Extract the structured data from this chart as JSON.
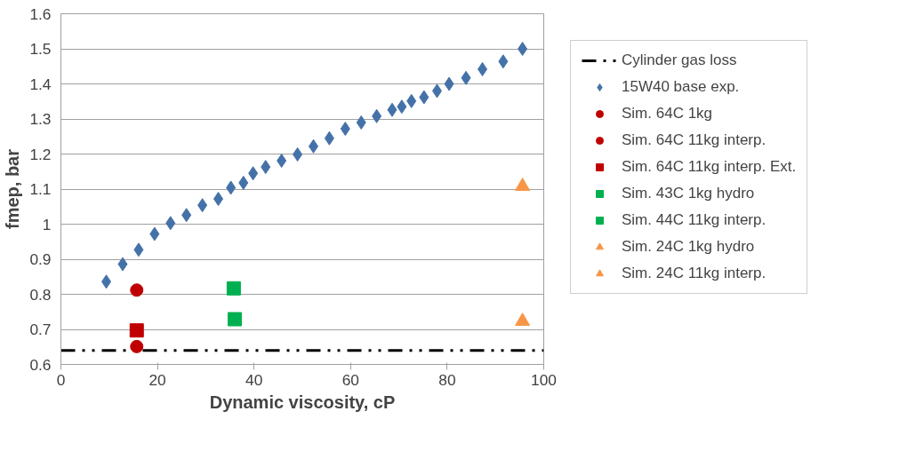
{
  "chart_data": {
    "type": "scatter",
    "xlabel": "Dynamic viscosity, cP",
    "ylabel": "fmep, bar",
    "xlim": [
      0,
      100
    ],
    "ylim": [
      0.6,
      1.6
    ],
    "xticks": [
      0,
      20,
      40,
      60,
      80,
      100
    ],
    "yticks": [
      0.6,
      0.7,
      0.8,
      0.9,
      1,
      1.1,
      1.2,
      1.3,
      1.4,
      1.5,
      1.6
    ],
    "grid": "y",
    "legend": "right",
    "series": [
      {
        "name": "Cylinder gas loss",
        "type": "line",
        "line_style": "dashed",
        "marker": "none",
        "color": "#000000",
        "x": [
          0,
          100
        ],
        "values": [
          0.64,
          0.64
        ]
      },
      {
        "name": "15W40 base exp.",
        "marker": "diamond",
        "color": "#4472a8",
        "x": [
          9.4,
          12.8,
          16.1,
          19.4,
          22.7,
          26.0,
          29.3,
          32.6,
          35.2,
          37.8,
          39.8,
          42.4,
          45.7,
          49.0,
          52.3,
          55.6,
          58.9,
          62.2,
          65.4,
          68.6,
          70.6,
          72.6,
          75.2,
          77.9,
          80.4,
          83.9,
          87.3,
          91.6,
          95.6
        ],
        "values": [
          0.836,
          0.886,
          0.927,
          0.972,
          1.003,
          1.026,
          1.054,
          1.072,
          1.104,
          1.118,
          1.145,
          1.163,
          1.181,
          1.199,
          1.222,
          1.245,
          1.272,
          1.29,
          1.308,
          1.326,
          1.335,
          1.351,
          1.362,
          1.38,
          1.4,
          1.417,
          1.442,
          1.464,
          1.5
        ]
      },
      {
        "name": "Sim. 64C 1kg",
        "marker": "circle",
        "color": "#c00000",
        "x": [
          15.7
        ],
        "values": [
          0.812
        ]
      },
      {
        "name": "Sim. 64C 11kg interp.",
        "marker": "circle",
        "color": "#c00000",
        "x": [
          15.7
        ],
        "values": [
          0.651
        ]
      },
      {
        "name": "Sim. 64C 11kg interp. Ext.",
        "marker": "square",
        "color": "#c00000",
        "x": [
          15.7
        ],
        "values": [
          0.697
        ]
      },
      {
        "name": "Sim. 43C 1kg hydro",
        "marker": "square",
        "color": "#00b050",
        "x": [
          35.8
        ],
        "values": [
          0.817
        ]
      },
      {
        "name": "Sim. 44C 11kg interp.",
        "marker": "square",
        "color": "#00b050",
        "x": [
          36
        ],
        "values": [
          0.729
        ]
      },
      {
        "name": "Sim. 24C 1kg hydro",
        "marker": "triangle",
        "color": "#f79646",
        "x": [
          95.6
        ],
        "values": [
          1.108
        ]
      },
      {
        "name": "Sim. 24C 11kg interp.",
        "marker": "triangle",
        "color": "#f79646",
        "x": [
          95.6
        ],
        "values": [
          0.723
        ]
      }
    ]
  }
}
